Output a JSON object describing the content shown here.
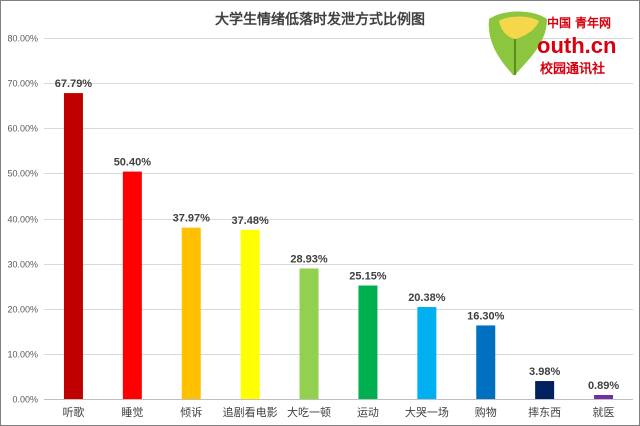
{
  "chart_data": {
    "type": "bar",
    "title": "大学生情绪低落时发泄方式比例图",
    "categories": [
      "听歌",
      "睡觉",
      "倾诉",
      "追剧看电影",
      "大吃一顿",
      "运动",
      "大哭一场",
      "购物",
      "摔东西",
      "就医"
    ],
    "values": [
      67.79,
      50.4,
      37.97,
      37.48,
      28.93,
      25.15,
      20.38,
      16.3,
      3.98,
      0.89
    ],
    "data_labels": [
      "67.79%",
      "50.40%",
      "37.97%",
      "37.48%",
      "28.93%",
      "25.15%",
      "20.38%",
      "16.30%",
      "3.98%",
      "0.89%"
    ],
    "colors": [
      "#c00000",
      "#ff0000",
      "#ffc000",
      "#ffff00",
      "#92d050",
      "#00b050",
      "#00b0f0",
      "#0070c0",
      "#002060",
      "#7030a0"
    ],
    "ylim": [
      0,
      80
    ],
    "yticks": [
      0,
      10,
      20,
      30,
      40,
      50,
      60,
      70,
      80
    ],
    "ytick_labels": [
      "0.00%",
      "10.00%",
      "20.00%",
      "30.00%",
      "40.00%",
      "50.00%",
      "60.00%",
      "70.00%",
      "80.00%"
    ],
    "xlabel": "",
    "ylabel": "",
    "grid": true,
    "legend": "none"
  },
  "watermark": {
    "line1_cn": "中国",
    "line1_rest": "青年网",
    "line2": "outh.cn",
    "line3": "校园通讯社"
  }
}
